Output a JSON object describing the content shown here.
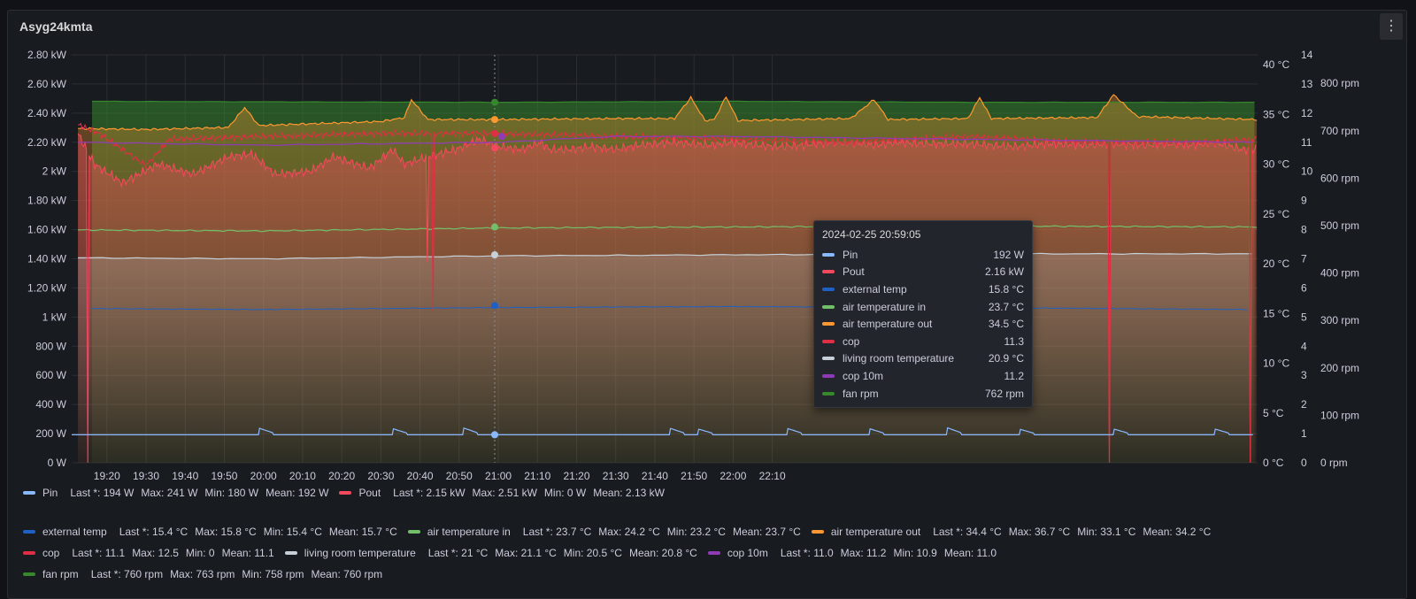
{
  "panel": {
    "title": "Asyg24kmta"
  },
  "chart_data": {
    "type": "line",
    "x_ticks": [
      "19:20",
      "19:30",
      "19:40",
      "19:50",
      "20:00",
      "20:10",
      "20:20",
      "20:30",
      "20:40",
      "20:50",
      "21:00",
      "21:10",
      "21:20",
      "21:30",
      "21:40",
      "21:50",
      "22:00",
      "22:10"
    ],
    "y_axes": {
      "power": {
        "ticks": [
          "0 W",
          "200 W",
          "400 W",
          "600 W",
          "800 W",
          "1 kW",
          "1.20 kW",
          "1.40 kW",
          "1.60 kW",
          "1.80 kW",
          "2 kW",
          "2.20 kW",
          "2.40 kW",
          "2.60 kW",
          "2.80 kW"
        ],
        "range": [
          0,
          2800
        ]
      },
      "temperature": {
        "ticks": [
          "0 °C",
          "5 °C",
          "10 °C",
          "15 °C",
          "20 °C",
          "25 °C",
          "30 °C",
          "35 °C",
          "40 °C"
        ],
        "range": [
          0,
          41
        ]
      },
      "cop": {
        "ticks": [
          "0",
          "1",
          "2",
          "3",
          "4",
          "5",
          "6",
          "7",
          "8",
          "9",
          "10",
          "11",
          "12",
          "13",
          "14"
        ],
        "range": [
          0,
          14
        ]
      },
      "rpm": {
        "ticks": [
          "0 rpm",
          "100 rpm",
          "200 rpm",
          "300 rpm",
          "400 rpm",
          "500 rpm",
          "600 rpm",
          "700 rpm",
          "800 rpm"
        ],
        "range": [
          0,
          860
        ]
      }
    },
    "series": [
      {
        "name": "Pin",
        "color": "#8ab8ff",
        "axis": "power",
        "baseline": 192,
        "bumps": [
          [
            19.98,
            238
          ],
          [
            20.55,
            234
          ],
          [
            20.85,
            240
          ],
          [
            21.73,
            237
          ],
          [
            21.85,
            232
          ],
          [
            22.23,
            236
          ],
          [
            22.58,
            234
          ],
          [
            22.91,
            241
          ],
          [
            23.22,
            230
          ],
          [
            23.62,
            232
          ],
          [
            24.05,
            232
          ],
          [
            24.23,
            238
          ]
        ]
      },
      {
        "name": "Pout",
        "color": "#f2495c",
        "axis": "power",
        "points": [
          [
            19.21,
            2260
          ],
          [
            19.28,
            2050
          ],
          [
            19.4,
            1920
          ],
          [
            19.55,
            2050
          ],
          [
            19.7,
            1980
          ],
          [
            19.85,
            2100
          ],
          [
            19.95,
            2120
          ],
          [
            20.05,
            1980
          ],
          [
            20.2,
            2000
          ],
          [
            20.3,
            2100
          ],
          [
            20.45,
            2020
          ],
          [
            20.55,
            2150
          ],
          [
            20.6,
            2050
          ],
          [
            20.7,
            2100
          ],
          [
            20.82,
            2150
          ],
          [
            20.92,
            2220
          ],
          [
            21.0,
            2170
          ],
          [
            21.1,
            2150
          ],
          [
            21.18,
            2200
          ],
          [
            21.22,
            2150
          ],
          [
            21.3,
            2150
          ],
          [
            21.4,
            2170
          ],
          [
            21.5,
            2150
          ],
          [
            21.6,
            2180
          ],
          [
            21.75,
            2200
          ],
          [
            21.9,
            2180
          ],
          [
            22.0,
            2200
          ],
          [
            22.1,
            2180
          ],
          [
            22.2,
            2170
          ],
          [
            22.3,
            2180
          ],
          [
            22.4,
            2200
          ],
          [
            22.5,
            2200
          ],
          [
            22.6,
            2180
          ],
          [
            22.7,
            2200
          ],
          [
            22.8,
            2190
          ],
          [
            22.9,
            2190
          ],
          [
            23.0,
            2190
          ],
          [
            23.1,
            2180
          ],
          [
            23.2,
            2170
          ],
          [
            23.35,
            2190
          ],
          [
            23.5,
            2180
          ],
          [
            23.6,
            2190
          ],
          [
            23.75,
            2180
          ],
          [
            23.85,
            2190
          ],
          [
            23.95,
            2180
          ],
          [
            24.05,
            2200
          ],
          [
            24.17,
            2150
          ],
          [
            24.23,
            2150
          ]
        ],
        "dips": [
          [
            19.25,
            0
          ],
          [
            20.7,
            1380
          ],
          [
            23.6,
            0
          ],
          [
            24.2,
            0
          ]
        ]
      },
      {
        "name": "external temp",
        "color": "#1f60c4",
        "axis": "temperature",
        "points": [
          [
            19.27,
            15.5
          ],
          [
            20.0,
            15.4
          ],
          [
            21.0,
            15.6
          ],
          [
            22.0,
            15.7
          ],
          [
            23.0,
            15.6
          ],
          [
            24.2,
            15.4
          ]
        ]
      },
      {
        "name": "air temperature in",
        "color": "#73bf69",
        "axis": "temperature",
        "points": [
          [
            19.21,
            23.4
          ],
          [
            20.0,
            23.3
          ],
          [
            21.0,
            23.6
          ],
          [
            22.0,
            23.7
          ],
          [
            23.0,
            23.8
          ],
          [
            24.23,
            23.7
          ]
        ]
      },
      {
        "name": "air temperature out",
        "color": "#ff9830",
        "axis": "temperature",
        "points": [
          [
            19.21,
            33.6
          ],
          [
            19.5,
            33.5
          ],
          [
            19.85,
            33.7
          ],
          [
            19.92,
            35.7
          ],
          [
            19.98,
            33.9
          ],
          [
            20.5,
            34.3
          ],
          [
            20.6,
            34.7
          ],
          [
            20.63,
            36.5
          ],
          [
            20.7,
            34.5
          ],
          [
            21.0,
            34.5
          ],
          [
            21.5,
            34.6
          ],
          [
            21.75,
            34.6
          ],
          [
            21.82,
            36.7
          ],
          [
            21.88,
            34.4
          ],
          [
            21.92,
            34.5
          ],
          [
            21.97,
            36.8
          ],
          [
            22.02,
            34.4
          ],
          [
            22.5,
            34.6
          ],
          [
            22.6,
            36.5
          ],
          [
            22.66,
            34.5
          ],
          [
            23.0,
            34.6
          ],
          [
            23.05,
            36.7
          ],
          [
            23.1,
            34.6
          ],
          [
            23.55,
            34.7
          ],
          [
            23.62,
            37.0
          ],
          [
            23.72,
            34.8
          ],
          [
            24.23,
            34.5
          ]
        ]
      },
      {
        "name": "cop",
        "color": "#e02f44",
        "axis": "cop",
        "points": [
          [
            19.21,
            11.6
          ],
          [
            19.3,
            11.3
          ],
          [
            19.5,
            10.2
          ],
          [
            19.6,
            11.1
          ],
          [
            20.0,
            11.2
          ],
          [
            20.5,
            11.3
          ],
          [
            21.0,
            11.3
          ],
          [
            21.5,
            11.2
          ],
          [
            22.0,
            11.1
          ],
          [
            22.5,
            11.0
          ],
          [
            23.0,
            11.2
          ],
          [
            23.5,
            11.0
          ],
          [
            24.0,
            11.0
          ],
          [
            24.23,
            11.1
          ]
        ],
        "dips": [
          [
            20.72,
            5.2
          ],
          [
            23.6,
            0.0
          ],
          [
            24.2,
            0.0
          ]
        ]
      },
      {
        "name": "living room temperature",
        "color": "#c7d0d9",
        "axis": "temperature",
        "points": [
          [
            19.21,
            20.6
          ],
          [
            20.0,
            20.5
          ],
          [
            21.0,
            20.8
          ],
          [
            22.0,
            20.9
          ],
          [
            23.0,
            21.0
          ],
          [
            24.23,
            21.0
          ]
        ]
      },
      {
        "name": "cop 10m",
        "color": "#8f3bb8",
        "axis": "cop",
        "points": [
          [
            19.21,
            11.0
          ],
          [
            20.0,
            10.9
          ],
          [
            21.0,
            11.0
          ],
          [
            21.5,
            11.2
          ],
          [
            22.0,
            11.2
          ],
          [
            23.0,
            11.1
          ],
          [
            24.23,
            11.0
          ]
        ]
      },
      {
        "name": "fan rpm",
        "color": "#37872d",
        "axis": "rpm",
        "points": [
          [
            19.27,
            762
          ],
          [
            20.0,
            761
          ],
          [
            21.0,
            760
          ],
          [
            22.0,
            762
          ],
          [
            23.0,
            760
          ],
          [
            24.23,
            760
          ]
        ]
      }
    ],
    "hover_time": "20:59"
  },
  "tooltip": {
    "time": "2024-02-25 20:59:05",
    "rows": [
      {
        "name": "Pin",
        "value": "192 W",
        "color": "#8ab8ff"
      },
      {
        "name": "Pout",
        "value": "2.16 kW",
        "color": "#f2495c"
      },
      {
        "name": "external temp",
        "value": "15.8 °C",
        "color": "#1f60c4"
      },
      {
        "name": "air temperature in",
        "value": "23.7 °C",
        "color": "#73bf69"
      },
      {
        "name": "air temperature out",
        "value": "34.5 °C",
        "color": "#ff9830"
      },
      {
        "name": "cop",
        "value": "11.3",
        "color": "#e02f44"
      },
      {
        "name": "living room temperature",
        "value": "20.9 °C",
        "color": "#c7d0d9"
      },
      {
        "name": "cop 10m",
        "value": "11.2",
        "color": "#8f3bb8"
      },
      {
        "name": "fan rpm",
        "value": "762 rpm",
        "color": "#37872d"
      }
    ]
  },
  "legend": [
    [
      {
        "name": "Pin",
        "color": "#8ab8ff",
        "stats": [
          "Last *: 194 W",
          "Max: 241 W",
          "Min: 180 W",
          "Mean: 192 W"
        ]
      },
      {
        "name": "Pout",
        "color": "#f2495c",
        "stats": [
          "Last *: 2.15 kW",
          "Max: 2.51 kW",
          "Min: 0 W",
          "Mean: 2.13 kW"
        ]
      }
    ],
    [
      {
        "name": "external temp",
        "color": "#1f60c4",
        "stats": [
          "Last *: 15.4 °C",
          "Max: 15.8 °C",
          "Min: 15.4 °C",
          "Mean: 15.7 °C"
        ]
      },
      {
        "name": "air temperature in",
        "color": "#73bf69",
        "stats": [
          "Last *: 23.7 °C",
          "Max: 24.2 °C",
          "Min: 23.2 °C",
          "Mean: 23.7 °C"
        ]
      },
      {
        "name": "air temperature out",
        "color": "#ff9830",
        "stats": [
          "Last *: 34.4 °C",
          "Max: 36.7 °C",
          "Min: 33.1 °C",
          "Mean: 34.2 °C"
        ]
      }
    ],
    [
      {
        "name": "cop",
        "color": "#e02f44",
        "stats": [
          "Last *: 11.1",
          "Max: 12.5",
          "Min: 0",
          "Mean: 11.1"
        ]
      },
      {
        "name": "living room temperature",
        "color": "#c7d0d9",
        "stats": [
          "Last *: 21 °C",
          "Max: 21.1 °C",
          "Min: 20.5 °C",
          "Mean: 20.8 °C"
        ]
      },
      {
        "name": "cop 10m",
        "color": "#8f3bb8",
        "stats": [
          "Last *: 11.0",
          "Max: 11.2",
          "Min: 10.9",
          "Mean: 11.0"
        ]
      }
    ],
    [
      {
        "name": "fan rpm",
        "color": "#37872d",
        "stats": [
          "Last *: 760 rpm",
          "Max: 763 rpm",
          "Min: 758 rpm",
          "Mean: 760 rpm"
        ]
      }
    ]
  ]
}
